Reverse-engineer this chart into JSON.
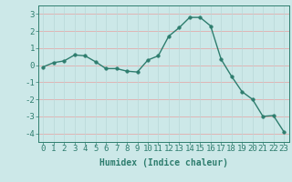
{
  "x": [
    0,
    1,
    2,
    3,
    4,
    5,
    6,
    7,
    8,
    9,
    10,
    11,
    12,
    13,
    14,
    15,
    16,
    17,
    18,
    19,
    20,
    21,
    22,
    23
  ],
  "y": [
    -0.1,
    0.15,
    0.25,
    0.6,
    0.55,
    0.2,
    -0.2,
    -0.2,
    -0.35,
    -0.4,
    0.3,
    0.55,
    1.7,
    2.2,
    2.8,
    2.8,
    2.3,
    0.35,
    -0.65,
    -1.55,
    -2.0,
    -3.0,
    -2.95,
    -3.9
  ],
  "line_color": "#2e7d6e",
  "marker_color": "#2e7d6e",
  "bg_color": "#cce8e8",
  "grid_color_h": "#e8a0a0",
  "grid_color_v": "#b8d8d8",
  "xlabel": "Humidex (Indice chaleur)",
  "xlim": [
    -0.5,
    23.5
  ],
  "ylim": [
    -4.5,
    3.5
  ],
  "yticks": [
    3,
    2,
    1,
    0,
    -1,
    -2,
    -3,
    -4
  ],
  "xticks": [
    0,
    1,
    2,
    3,
    4,
    5,
    6,
    7,
    8,
    9,
    10,
    11,
    12,
    13,
    14,
    15,
    16,
    17,
    18,
    19,
    20,
    21,
    22,
    23
  ],
  "marker_size": 2.5,
  "line_width": 1.0,
  "font_size": 6.5,
  "xlabel_fontsize": 7.0
}
